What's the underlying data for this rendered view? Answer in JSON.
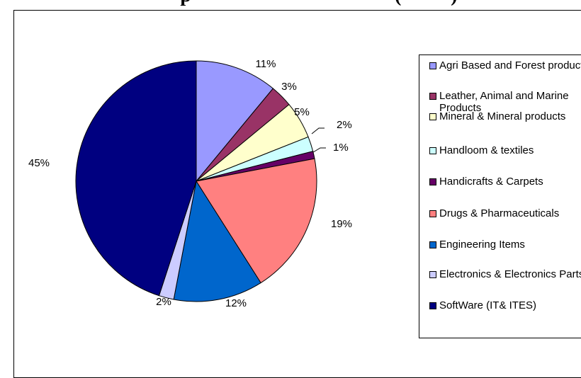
{
  "chart_data": {
    "type": "pie",
    "title": "",
    "slices": [
      {
        "label": "Agri Based and Forest products",
        "value": 11,
        "display": "11%",
        "color": "#9999ff"
      },
      {
        "label": "Leather, Animal and Marine Products",
        "value": 3,
        "display": "3%",
        "color": "#993366"
      },
      {
        "label": "Mineral & Mineral products",
        "value": 5,
        "display": "5%",
        "color": "#ffffcc"
      },
      {
        "label": "Handloom & textiles",
        "value": 2,
        "display": "2%",
        "color": "#ccffff"
      },
      {
        "label": "Handicrafts & Carpets",
        "value": 1,
        "display": "1%",
        "color": "#660066"
      },
      {
        "label": "Drugs & Pharmaceuticals",
        "value": 19,
        "display": "19%",
        "color": "#ff8080"
      },
      {
        "label": "Engineering Items",
        "value": 12,
        "display": "12%",
        "color": "#0066cc"
      },
      {
        "label": "Electronics & Electronics Parts",
        "value": 2,
        "display": "2%",
        "color": "#ccccff"
      },
      {
        "label": "SoftWare (IT& ITES)",
        "value": 45,
        "display": "45%",
        "color": "#000080"
      }
    ],
    "legend_position": "right"
  }
}
